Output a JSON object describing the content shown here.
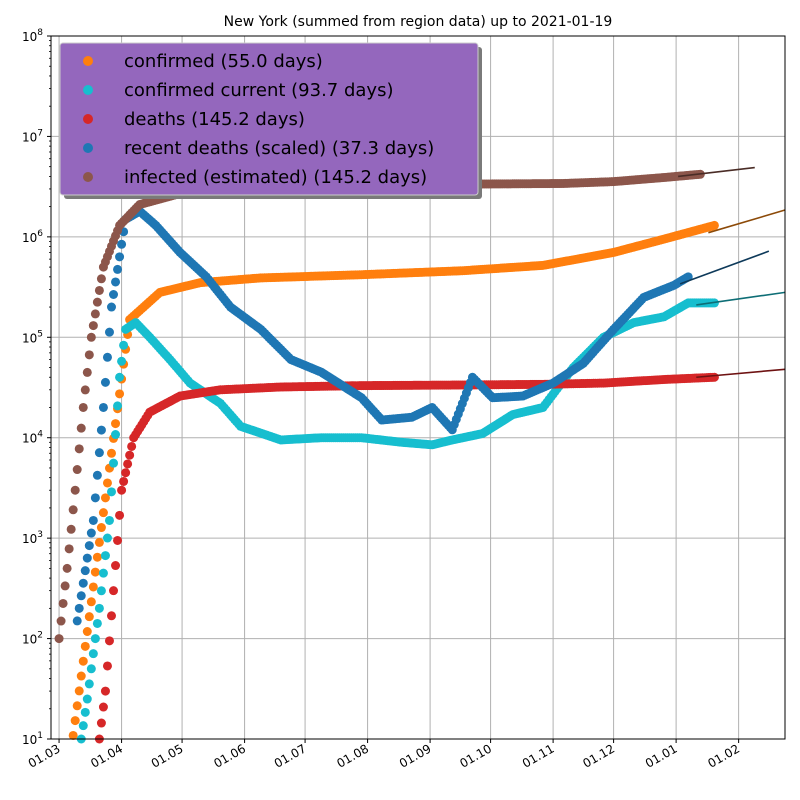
{
  "chart_data": {
    "type": "scatter",
    "title": "New York (summed from region data) up to 2021-01-19",
    "xlabel": "",
    "ylabel": "",
    "yscale": "log",
    "ylim": [
      10,
      100000000
    ],
    "xlim_days": [
      -4,
      360
    ],
    "x_origin": "2020-03-01",
    "x_ticks": [
      {
        "label": "01.03",
        "day": 0
      },
      {
        "label": "01.04",
        "day": 31
      },
      {
        "label": "01.05",
        "day": 61
      },
      {
        "label": "01.06",
        "day": 92
      },
      {
        "label": "01.07",
        "day": 122
      },
      {
        "label": "01.08",
        "day": 153
      },
      {
        "label": "01.09",
        "day": 184
      },
      {
        "label": "01.10",
        "day": 214
      },
      {
        "label": "01.11",
        "day": 245
      },
      {
        "label": "01.12",
        "day": 275
      },
      {
        "label": "01.01",
        "day": 306
      },
      {
        "label": "01.02",
        "day": 337
      }
    ],
    "y_ticks": [
      {
        "base": "10",
        "exp": "1",
        "value": 10
      },
      {
        "base": "10",
        "exp": "2",
        "value": 100
      },
      {
        "base": "10",
        "exp": "3",
        "value": 1000
      },
      {
        "base": "10",
        "exp": "4",
        "value": 10000
      },
      {
        "base": "10",
        "exp": "5",
        "value": 100000
      },
      {
        "base": "10",
        "exp": "6",
        "value": 1000000
      },
      {
        "base": "10",
        "exp": "7",
        "value": 10000000
      },
      {
        "base": "10",
        "exp": "8",
        "value": 100000000
      }
    ],
    "grid": true,
    "legend_position": "top-left",
    "series": [
      {
        "name": "confirmed (55.0 days)",
        "color": "#ff7f0e",
        "fit_color": "#8c4a08",
        "keypoints": [
          [
            0,
            1
          ],
          [
            35,
            150000
          ],
          [
            50,
            280000
          ],
          [
            70,
            350000
          ],
          [
            100,
            390000
          ],
          [
            150,
            420000
          ],
          [
            200,
            460000
          ],
          [
            240,
            520000
          ],
          [
            275,
            700000
          ],
          [
            300,
            950000
          ],
          [
            325,
            1300000
          ]
        ],
        "fit": [
          [
            322,
            1100000
          ],
          [
            360,
            1850000
          ]
        ]
      },
      {
        "name": "confirmed current (93.7 days)",
        "color": "#17becf",
        "fit_color": "#0e6e76",
        "keypoints": [
          [
            11,
            10
          ],
          [
            14,
            25
          ],
          [
            20,
            200
          ],
          [
            25,
            1500
          ],
          [
            30,
            40000
          ],
          [
            33,
            120000
          ],
          [
            38,
            140000
          ],
          [
            45,
            100000
          ],
          [
            55,
            60000
          ],
          [
            65,
            35000
          ],
          [
            80,
            22000
          ],
          [
            90,
            13000
          ],
          [
            110,
            9500
          ],
          [
            130,
            10000
          ],
          [
            150,
            10000
          ],
          [
            170,
            9000
          ],
          [
            185,
            8500
          ],
          [
            195,
            9500
          ],
          [
            210,
            11000
          ],
          [
            225,
            17000
          ],
          [
            240,
            20000
          ],
          [
            255,
            50000
          ],
          [
            270,
            100000
          ],
          [
            285,
            140000
          ],
          [
            300,
            160000
          ],
          [
            312,
            220000
          ],
          [
            325,
            220000
          ]
        ],
        "fit": [
          [
            316,
            210000
          ],
          [
            360,
            280000
          ]
        ]
      },
      {
        "name": "deaths (145.2 days)",
        "color": "#d62728",
        "fit_color": "#6e1212",
        "keypoints": [
          [
            20,
            10
          ],
          [
            23,
            30
          ],
          [
            27,
            300
          ],
          [
            31,
            3000
          ],
          [
            37,
            10000
          ],
          [
            45,
            18000
          ],
          [
            60,
            26000
          ],
          [
            80,
            30000
          ],
          [
            110,
            32000
          ],
          [
            150,
            33000
          ],
          [
            200,
            33500
          ],
          [
            240,
            34000
          ],
          [
            270,
            35000
          ],
          [
            300,
            38000
          ],
          [
            325,
            40000
          ]
        ],
        "fit": [
          [
            316,
            40000
          ],
          [
            360,
            48000
          ]
        ]
      },
      {
        "name": "recent deaths (scaled) (37.3 days)",
        "color": "#1f77b4",
        "fit_color": "#0e3a5a",
        "keypoints": [
          [
            9,
            150
          ],
          [
            17,
            1500
          ],
          [
            22,
            20000
          ],
          [
            26,
            200000
          ],
          [
            33,
            1500000
          ],
          [
            40,
            1800000
          ],
          [
            48,
            1300000
          ],
          [
            60,
            700000
          ],
          [
            73,
            400000
          ],
          [
            85,
            200000
          ],
          [
            100,
            120000
          ],
          [
            115,
            60000
          ],
          [
            130,
            45000
          ],
          [
            150,
            25000
          ],
          [
            160,
            15000
          ],
          [
            175,
            16000
          ],
          [
            185,
            20000
          ],
          [
            195,
            12000
          ],
          [
            205,
            40000
          ],
          [
            215,
            25000
          ],
          [
            230,
            26000
          ],
          [
            245,
            35000
          ],
          [
            260,
            55000
          ],
          [
            275,
            120000
          ],
          [
            290,
            250000
          ],
          [
            305,
            330000
          ],
          [
            312,
            400000
          ]
        ],
        "fit": [
          [
            308,
            340000
          ],
          [
            352,
            720000
          ]
        ]
      },
      {
        "name": "infected (estimated) (145.2 days)",
        "color": "#8c564b",
        "fit_color": "#4a2c26",
        "keypoints": [
          [
            0,
            100
          ],
          [
            4,
            500
          ],
          [
            8,
            3000
          ],
          [
            12,
            20000
          ],
          [
            16,
            100000
          ],
          [
            22,
            500000
          ],
          [
            30,
            1300000
          ],
          [
            40,
            2100000
          ],
          [
            60,
            2700000
          ],
          [
            100,
            3100000
          ],
          [
            150,
            3300000
          ],
          [
            200,
            3350000
          ],
          [
            250,
            3400000
          ],
          [
            275,
            3550000
          ],
          [
            300,
            3900000
          ],
          [
            318,
            4200000
          ]
        ],
        "fit": [
          [
            307,
            4000000
          ],
          [
            345,
            4900000
          ]
        ]
      }
    ]
  }
}
